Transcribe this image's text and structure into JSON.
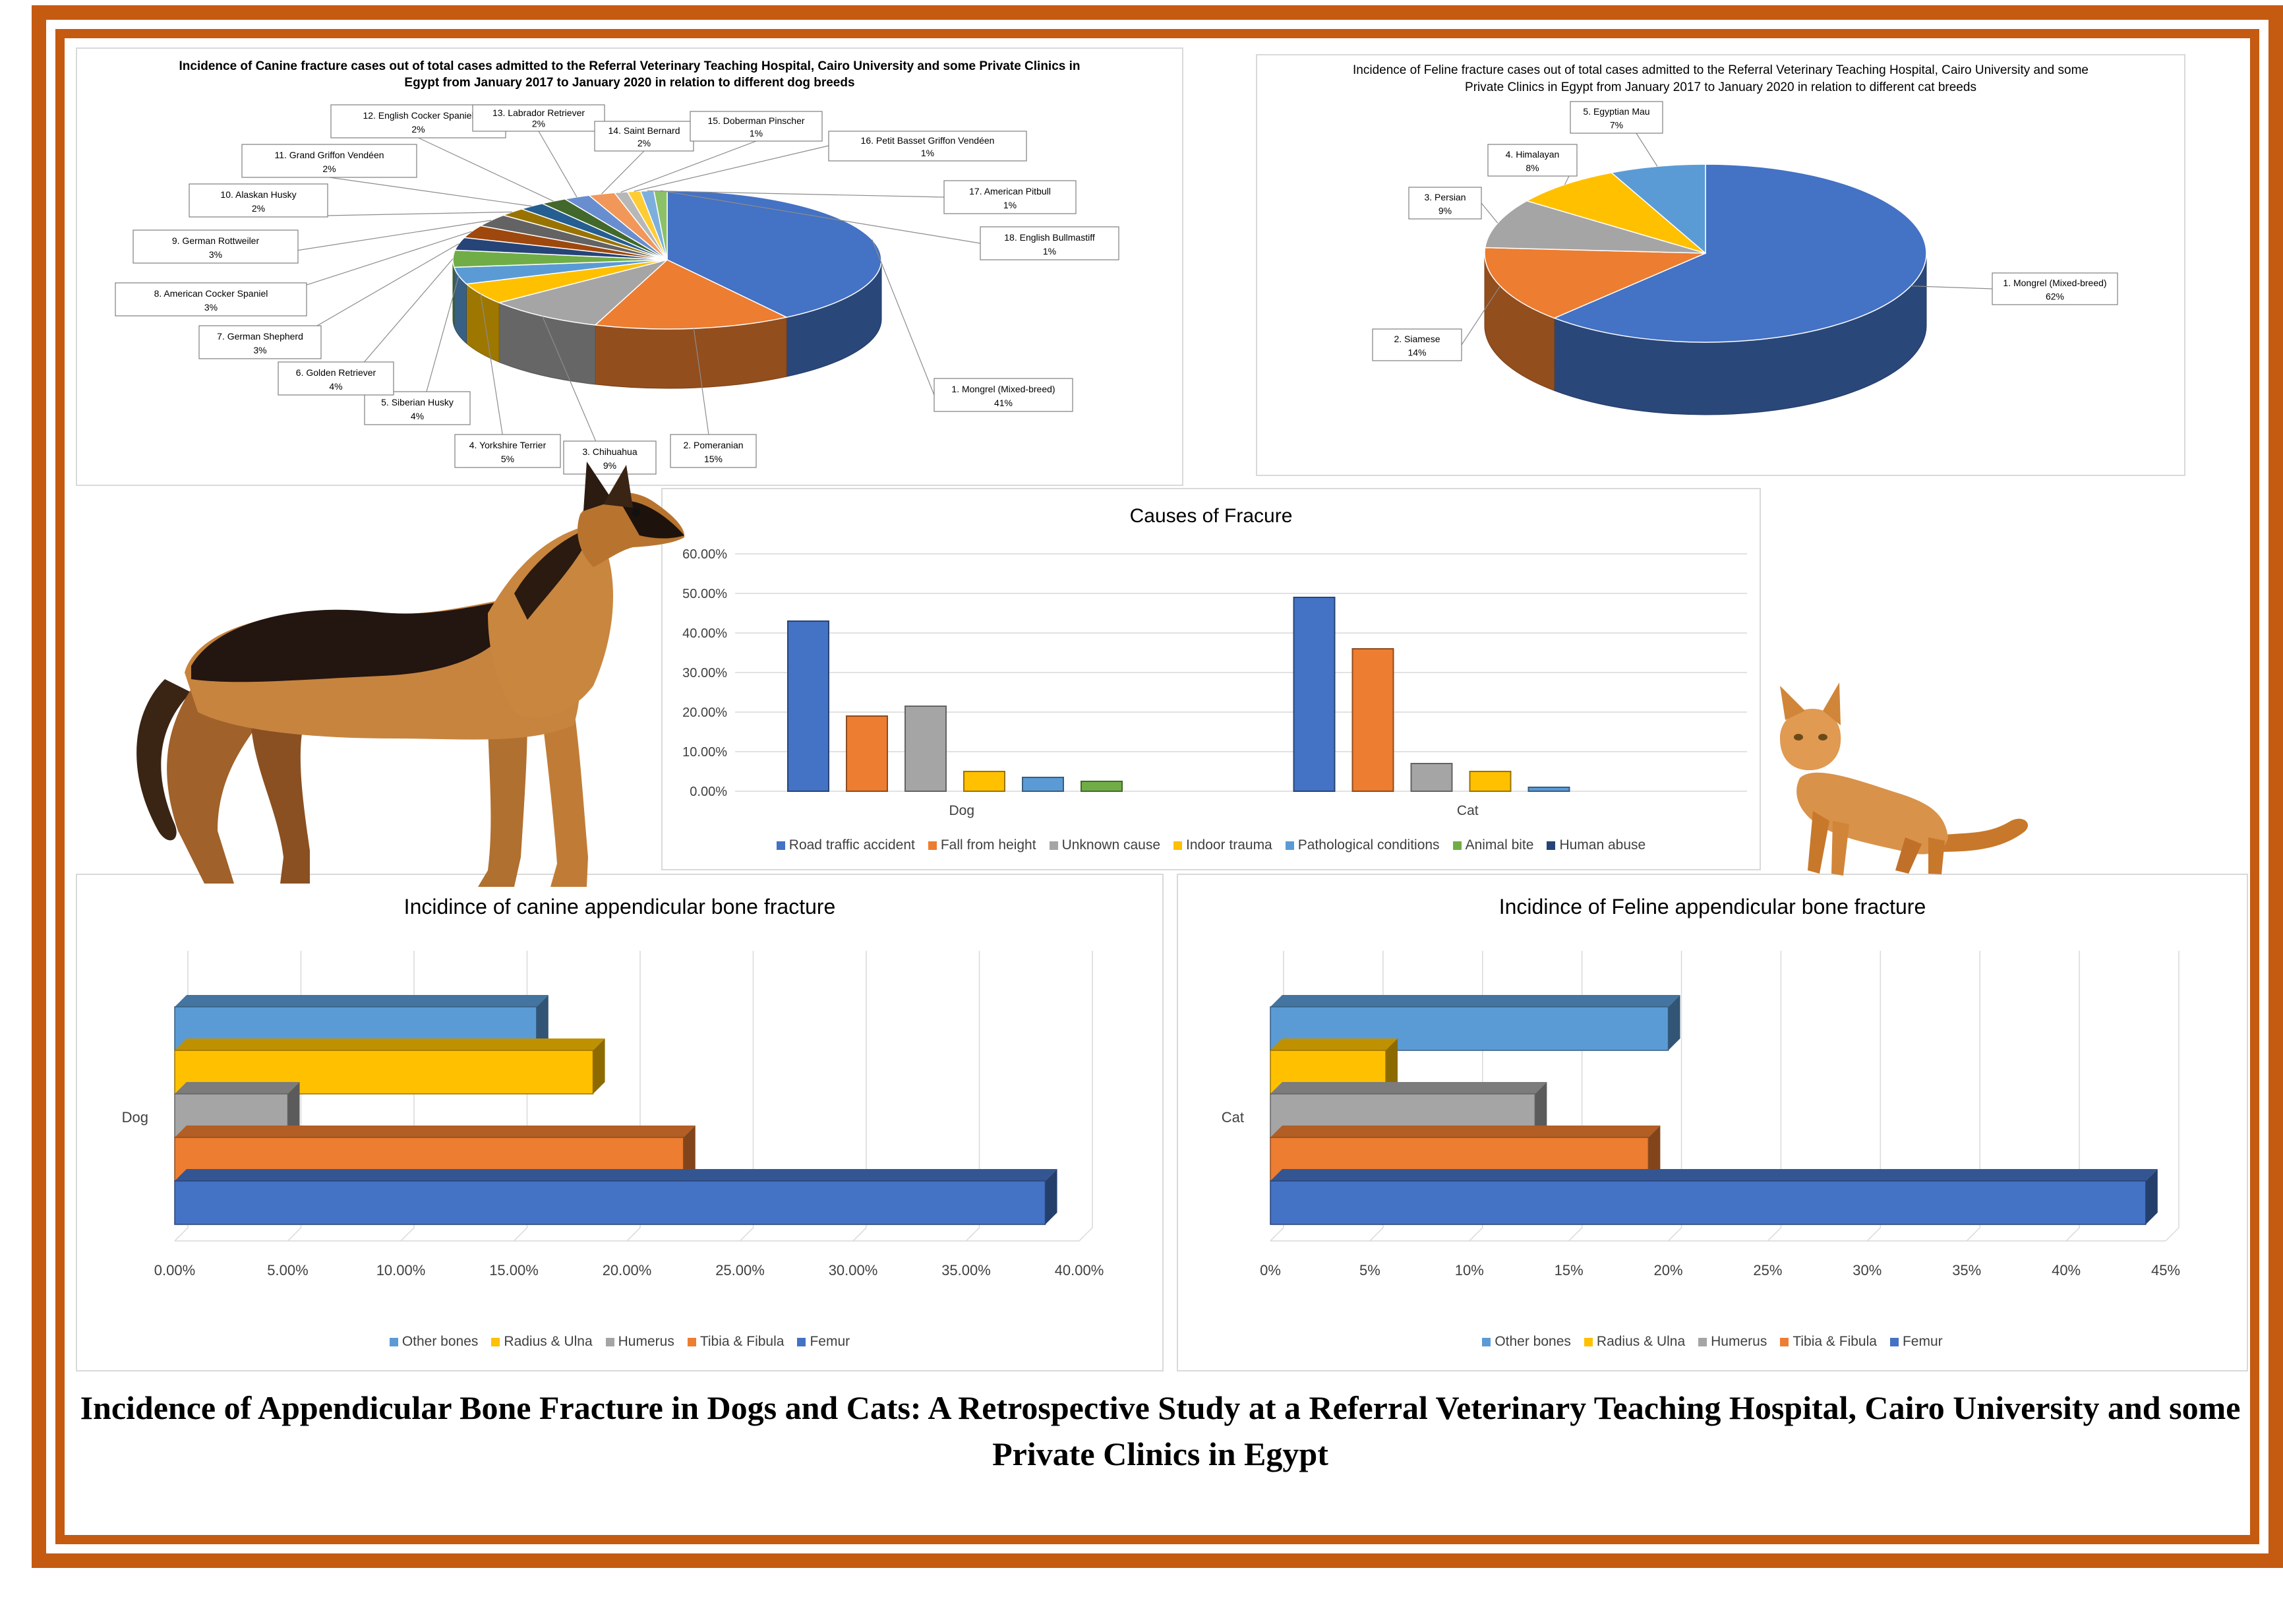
{
  "caption": "Incidence of Appendicular Bone Fracture in Dogs and Cats: A Retrospective Study at a Referral Veterinary Teaching Hospital, Cairo University and some Private Clinics in Egypt",
  "colors": {
    "frame": "#c55a11",
    "blue": "#4472c4",
    "orange": "#ed7d31",
    "gray": "#a5a5a5",
    "gold": "#ffc000",
    "lightblue": "#5b9bd5",
    "green": "#70ad47",
    "navy": "#264478"
  },
  "chart_data": [
    {
      "id": "canine_breeds",
      "type": "pie",
      "title": "Incidence of Canine fracture cases out of total cases admitted to the Referral Veterinary Teaching Hospital, Cairo University and some Private Clinics in Egypt from January 2017 to January 2020 in relation to different dog breeds",
      "slices": [
        {
          "label": "1.     Mongrel (Mixed-breed)",
          "pct": "41%",
          "value": 41,
          "color": "#4472c4"
        },
        {
          "label": "2.     Pomeranian",
          "pct": "15%",
          "value": 15,
          "color": "#ed7d31"
        },
        {
          "label": "3.     Chihuahua",
          "pct": "9%",
          "value": 9,
          "color": "#a5a5a5"
        },
        {
          "label": "4.     Yorkshire Terrier",
          "pct": "5%",
          "value": 5,
          "color": "#ffc000"
        },
        {
          "label": "5.     Siberian Husky",
          "pct": "4%",
          "value": 4,
          "color": "#5b9bd5"
        },
        {
          "label": "6.     Golden Retriever",
          "pct": "4%",
          "value": 4,
          "color": "#70ad47"
        },
        {
          "label": "7.     German Shepherd",
          "pct": "3%",
          "value": 3,
          "color": "#264478"
        },
        {
          "label": "8.     American Cocker Spaniel",
          "pct": "3%",
          "value": 3,
          "color": "#9e480e"
        },
        {
          "label": "9.     German Rottweiler",
          "pct": "3%",
          "value": 3,
          "color": "#636363"
        },
        {
          "label": "10.  Alaskan Husky",
          "pct": "2%",
          "value": 2,
          "color": "#997300"
        },
        {
          "label": "11.  Grand Griffon Vendéen",
          "pct": "2%",
          "value": 2,
          "color": "#255e91"
        },
        {
          "label": "12.  English Cocker Spaniel",
          "pct": "2%",
          "value": 2,
          "color": "#43682b"
        },
        {
          "label": "13.  Labrador Retriever",
          "pct": "2%",
          "value": 2,
          "color": "#698ed0"
        },
        {
          "label": "14.  Saint Bernard",
          "pct": "2%",
          "value": 2,
          "color": "#f1975a"
        },
        {
          "label": "15.  Doberman Pinscher",
          "pct": "1%",
          "value": 1,
          "color": "#b7b7b7"
        },
        {
          "label": "16.  Petit Basset Griffon Vendéen",
          "pct": "1%",
          "value": 1,
          "color": "#ffcd33"
        },
        {
          "label": "17.  American Pitbull",
          "pct": "1%",
          "value": 1,
          "color": "#7cafdd"
        },
        {
          "label": "18.  English Bullmastiff",
          "pct": "1%",
          "value": 1,
          "color": "#8cc168"
        }
      ]
    },
    {
      "id": "feline_breeds",
      "type": "pie",
      "title": "Incidence of Feline fracture cases out of total cases admitted to the Referral Veterinary Teaching Hospital, Cairo University and some Private Clinics in Egypt from January 2017 to January 2020 in relation to different cat breeds",
      "slices": [
        {
          "label": "1.     Mongrel (Mixed-breed)",
          "pct": "62%",
          "value": 62,
          "color": "#4472c4"
        },
        {
          "label": "2.     Siamese",
          "pct": "14%",
          "value": 14,
          "color": "#ed7d31"
        },
        {
          "label": "3.     Persian",
          "pct": "9%",
          "value": 9,
          "color": "#a5a5a5"
        },
        {
          "label": "4.     Himalayan",
          "pct": "8%",
          "value": 8,
          "color": "#ffc000"
        },
        {
          "label": "5.     Egyptian Mau",
          "pct": "7%",
          "value": 7,
          "color": "#5b9bd5"
        }
      ]
    },
    {
      "id": "causes",
      "type": "bar",
      "title": "Causes of Fracure",
      "categories": [
        "Dog",
        "Cat"
      ],
      "ylim": [
        0,
        0.6
      ],
      "yticks": [
        "0.00%",
        "10.00%",
        "20.00%",
        "30.00%",
        "40.00%",
        "50.00%",
        "60.00%"
      ],
      "series": [
        {
          "name": "Road traffic accident",
          "color": "#4472c4",
          "values": [
            0.43,
            0.49
          ]
        },
        {
          "name": "Fall from height",
          "color": "#ed7d31",
          "values": [
            0.19,
            0.36
          ]
        },
        {
          "name": "Unknown cause",
          "color": "#a5a5a5",
          "values": [
            0.215,
            0.07
          ]
        },
        {
          "name": "Indoor trauma",
          "color": "#ffc000",
          "values": [
            0.05,
            0.05
          ]
        },
        {
          "name": "Pathological conditions",
          "color": "#5b9bd5",
          "values": [
            0.035,
            0.01
          ]
        },
        {
          "name": "Animal bite",
          "color": "#70ad47",
          "values": [
            0.025,
            0
          ]
        },
        {
          "name": "Human abuse",
          "color": "#264478",
          "values": [
            0,
            0
          ]
        }
      ]
    },
    {
      "id": "canine_bones",
      "type": "bar",
      "orientation": "horizontal",
      "title": "Incidince of canine appendicular bone fracture",
      "category": "Dog",
      "xlim": [
        0,
        0.4
      ],
      "xticks": [
        "0.00%",
        "5.00%",
        "10.00%",
        "15.00%",
        "20.00%",
        "25.00%",
        "30.00%",
        "35.00%",
        "40.00%"
      ],
      "series": [
        {
          "name": "Other bones",
          "color": "#5b9bd5",
          "value": 0.16
        },
        {
          "name": "Radius & Ulna",
          "color": "#ffc000",
          "value": 0.185
        },
        {
          "name": "Humerus",
          "color": "#a5a5a5",
          "value": 0.05
        },
        {
          "name": "Tibia & Fibula",
          "color": "#ed7d31",
          "value": 0.225
        },
        {
          "name": "Femur",
          "color": "#4472c4",
          "value": 0.385
        }
      ]
    },
    {
      "id": "feline_bones",
      "type": "bar",
      "orientation": "horizontal",
      "title": "Incidince of Feline appendicular bone fracture",
      "category": "Cat",
      "xlim": [
        0,
        0.45
      ],
      "xticks": [
        "0%",
        "5%",
        "10%",
        "15%",
        "20%",
        "25%",
        "30%",
        "35%",
        "40%",
        "45%"
      ],
      "series": [
        {
          "name": "Other bones",
          "color": "#5b9bd5",
          "value": 0.2
        },
        {
          "name": "Radius & Ulna",
          "color": "#ffc000",
          "value": 0.058
        },
        {
          "name": "Humerus",
          "color": "#a5a5a5",
          "value": 0.133
        },
        {
          "name": "Tibia & Fibula",
          "color": "#ed7d31",
          "value": 0.19
        },
        {
          "name": "Femur",
          "color": "#4472c4",
          "value": 0.44
        }
      ]
    }
  ]
}
